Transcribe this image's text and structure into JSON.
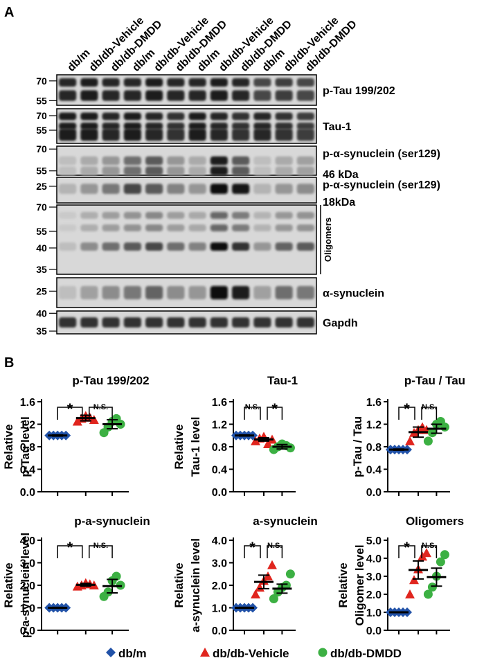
{
  "panel_a": {
    "label": "A",
    "lanes": [
      "db/m",
      "db/db-Vehicle",
      "db/db-DMDD",
      "db/m",
      "db/db-Vehicle",
      "db/db-DMDD",
      "db/m",
      "db/db-Vehicle",
      "db/db-DMDD",
      "db/m",
      "db/db-Vehicle",
      "db/db-DMDD"
    ],
    "blots": [
      {
        "label": "p-Tau 199/202",
        "label2": "",
        "markers": [
          "70",
          "55"
        ],
        "intensity": [
          0.85,
          0.9,
          0.85,
          0.85,
          0.9,
          0.85,
          0.85,
          0.9,
          0.85,
          0.7,
          0.75,
          0.7
        ]
      },
      {
        "label": "Tau-1",
        "label2": "",
        "markers": [
          "70",
          "55"
        ],
        "intensity": [
          0.9,
          0.9,
          0.85,
          0.9,
          0.85,
          0.8,
          0.9,
          0.85,
          0.8,
          0.85,
          0.8,
          0.75
        ]
      },
      {
        "label": "p-α-synuclein (ser129)",
        "label2": "46 kDa",
        "markers": [
          "70",
          "55"
        ],
        "intensity": [
          0.1,
          0.2,
          0.3,
          0.5,
          0.6,
          0.3,
          0.2,
          0.9,
          0.6,
          0.1,
          0.2,
          0.25
        ]
      },
      {
        "label": "p-α-synuclein (ser129)",
        "label2": "18kDa",
        "markers": [
          "25"
        ],
        "intensity": [
          0.15,
          0.3,
          0.45,
          0.7,
          0.6,
          0.4,
          0.3,
          1.0,
          0.95,
          0.15,
          0.3,
          0.35
        ]
      },
      {
        "label": "",
        "label2": "",
        "side_label": "Oligomers",
        "markers": [
          "70",
          "55",
          "40",
          "35"
        ],
        "intensity": [
          0.1,
          0.35,
          0.5,
          0.6,
          0.7,
          0.5,
          0.4,
          1.0,
          0.8,
          0.3,
          0.55,
          0.6
        ]
      },
      {
        "label": "α-synuclein",
        "label2": "",
        "markers": [
          "25"
        ],
        "intensity": [
          0.1,
          0.25,
          0.35,
          0.45,
          0.55,
          0.35,
          0.3,
          1.0,
          0.9,
          0.25,
          0.5,
          0.45
        ]
      },
      {
        "label": "Gapdh",
        "label2": "",
        "markers": [
          "40",
          "35"
        ],
        "intensity": [
          0.8,
          0.8,
          0.8,
          0.8,
          0.8,
          0.8,
          0.8,
          0.8,
          0.8,
          0.8,
          0.8,
          0.8
        ]
      }
    ]
  },
  "panel_b": {
    "label": "B"
  },
  "chart_data": [
    {
      "type": "scatter",
      "title": "p-Tau 199/202",
      "ylabel_lines": [
        "Relative",
        "p-Tau level"
      ],
      "ylim": [
        0,
        1.6
      ],
      "yticks": [
        "0.0",
        "0.4",
        "0.8",
        "1.2",
        "1.6"
      ],
      "series": [
        {
          "name": "db/m",
          "values": [
            1.0,
            1.0,
            1.0,
            1.0,
            1.0
          ]
        },
        {
          "name": "db/db-Vehicle",
          "values": [
            1.25,
            1.3,
            1.35,
            1.32,
            1.28
          ]
        },
        {
          "name": "db/db-DMDD",
          "values": [
            1.05,
            1.15,
            1.25,
            1.3,
            1.2
          ]
        }
      ],
      "means": [
        1.0,
        1.31,
        1.2
      ],
      "sems": [
        0.01,
        0.05,
        0.08
      ],
      "brackets": [
        {
          "from": 0,
          "to": 1,
          "text": "*"
        },
        {
          "from": 1,
          "to": 2,
          "text": "N.S."
        }
      ]
    },
    {
      "type": "scatter",
      "title": "Tau-1",
      "ylabel_lines": [
        "Relative",
        "Tau-1 level"
      ],
      "ylim": [
        0,
        1.6
      ],
      "yticks": [
        "0.0",
        "0.4",
        "0.8",
        "1.2",
        "1.6"
      ],
      "series": [
        {
          "name": "db/m",
          "values": [
            1.0,
            1.0,
            1.0,
            1.0,
            1.0
          ]
        },
        {
          "name": "db/db-Vehicle",
          "values": [
            0.9,
            0.95,
            0.98,
            0.85,
            0.93
          ]
        },
        {
          "name": "db/db-DMDD",
          "values": [
            0.75,
            0.8,
            0.85,
            0.82,
            0.78
          ]
        }
      ],
      "means": [
        1.0,
        0.93,
        0.8
      ],
      "sems": [
        0.01,
        0.03,
        0.04
      ],
      "brackets": [
        {
          "from": 0,
          "to": 1,
          "text": "N.S."
        },
        {
          "from": 1,
          "to": 2,
          "text": "*"
        }
      ]
    },
    {
      "type": "scatter",
      "title": "p-Tau / Tau",
      "ylabel_lines": [
        "p-Tau / Tau"
      ],
      "ylim": [
        0,
        1.6
      ],
      "yticks": [
        "0.0",
        "0.4",
        "0.8",
        "1.2",
        "1.6"
      ],
      "series": [
        {
          "name": "db/m",
          "values": [
            0.75,
            0.75,
            0.75,
            0.75,
            0.75
          ]
        },
        {
          "name": "db/db-Vehicle",
          "values": [
            0.9,
            1.05,
            1.1,
            1.15,
            1.1
          ]
        },
        {
          "name": "db/db-DMDD",
          "values": [
            0.9,
            1.05,
            1.2,
            1.25,
            1.15
          ]
        }
      ],
      "means": [
        0.75,
        1.06,
        1.12
      ],
      "sems": [
        0.01,
        0.09,
        0.08
      ],
      "brackets": [
        {
          "from": 0,
          "to": 1,
          "text": "*"
        },
        {
          "from": 1,
          "to": 2,
          "text": "N.S."
        }
      ]
    },
    {
      "type": "scatter",
      "title": "p-a-synuclein",
      "ylabel_lines": [
        "Relative",
        "p-a-synuclein level"
      ],
      "ylim": [
        0,
        4
      ],
      "yticks": [
        "0.0",
        "1.0",
        "2.0",
        "3.0",
        "4.0"
      ],
      "series": [
        {
          "name": "db/m",
          "values": [
            1.0,
            1.0,
            1.0,
            1.0,
            1.0
          ]
        },
        {
          "name": "db/db-Vehicle",
          "values": [
            1.95,
            2.0,
            2.1,
            2.05,
            2.0
          ]
        },
        {
          "name": "db/db-DMDD",
          "values": [
            1.5,
            1.7,
            2.2,
            2.4,
            2.0
          ]
        }
      ],
      "means": [
        1.0,
        2.02,
        1.96
      ],
      "sems": [
        0.02,
        0.06,
        0.3
      ],
      "brackets": [
        {
          "from": 0,
          "to": 1,
          "text": "*"
        },
        {
          "from": 1,
          "to": 2,
          "text": "N.S."
        }
      ]
    },
    {
      "type": "scatter",
      "title": "a-synuclein",
      "ylabel_lines": [
        "Relative",
        "a-synuclein level"
      ],
      "ylim": [
        0,
        4
      ],
      "yticks": [
        "0.0",
        "1.0",
        "2.0",
        "3.0",
        "4.0"
      ],
      "series": [
        {
          "name": "db/m",
          "values": [
            1.0,
            1.0,
            1.0,
            1.0,
            1.0
          ]
        },
        {
          "name": "db/db-Vehicle",
          "values": [
            1.6,
            1.9,
            2.2,
            2.4,
            2.9
          ]
        },
        {
          "name": "db/db-DMDD",
          "values": [
            1.4,
            1.7,
            1.9,
            2.0,
            2.5
          ]
        }
      ],
      "means": [
        1.0,
        2.15,
        1.85
      ],
      "sems": [
        0.02,
        0.3,
        0.2
      ],
      "brackets": [
        {
          "from": 0,
          "to": 1,
          "text": "*"
        },
        {
          "from": 1,
          "to": 2,
          "text": "N.S."
        }
      ]
    },
    {
      "type": "scatter",
      "title": "Oligomers",
      "ylabel_lines": [
        "Relative",
        "Oligomer level"
      ],
      "ylim": [
        0,
        5
      ],
      "yticks": [
        "0.0",
        "1.0",
        "2.0",
        "3.0",
        "4.0",
        "5.0"
      ],
      "series": [
        {
          "name": "db/m",
          "values": [
            1.0,
            1.0,
            1.0,
            1.0,
            1.0
          ]
        },
        {
          "name": "db/db-Vehicle",
          "values": [
            2.0,
            2.8,
            3.4,
            4.1,
            4.3
          ]
        },
        {
          "name": "db/db-DMDD",
          "values": [
            2.0,
            2.4,
            3.0,
            3.8,
            4.2
          ]
        }
      ],
      "means": [
        1.0,
        3.35,
        2.95
      ],
      "sems": [
        0.02,
        0.5,
        0.5
      ],
      "brackets": [
        {
          "from": 0,
          "to": 1,
          "text": "*"
        },
        {
          "from": 1,
          "to": 2,
          "text": "N.S."
        }
      ]
    }
  ],
  "legend": {
    "items": [
      {
        "name": "db/m",
        "marker": "diamond",
        "color": "#2152a8"
      },
      {
        "name": "db/db-Vehicle",
        "marker": "triangle",
        "color": "#e0251e"
      },
      {
        "name": "db/db-DMDD",
        "marker": "circle",
        "color": "#3cb043"
      }
    ]
  }
}
